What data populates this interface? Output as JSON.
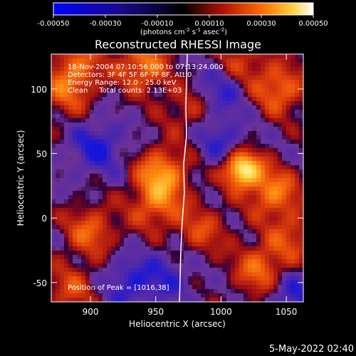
{
  "chart_data": {
    "type": "heatmap",
    "title": "Reconstructed RHESSI Image",
    "xlabel": "Heliocentric X (arcsec)",
    "ylabel": "Heliocentric Y (arcsec)",
    "xlim": [
      870,
      1063
    ],
    "ylim": [
      -65,
      127
    ],
    "x_ticks": [
      900,
      950,
      1000,
      1050
    ],
    "y_ticks": [
      -50,
      0,
      50,
      100
    ],
    "colorbar": {
      "range": [
        -0.0005,
        0.0005
      ],
      "ticks": [
        "-0.00050",
        "-0.00030",
        "-0.00010",
        "0.00010",
        "0.00030",
        "0.00050"
      ],
      "label_main": "(photons cm",
      "label_exp1": "-2",
      "label_mid": " s",
      "label_exp2": "-1",
      "label_end": " asec",
      "label_exp3": "-2",
      "label_close": ")"
    },
    "annotations": [
      "18-Nov-2004 07:10:56.000 to 07:13:24.000",
      "Detectors: 3F 4F 5F 6F 7F 8F, Att 0",
      "Energy Range: 12.0 - 25.0 keV",
      "Clean     Total counts: 2.13E+03"
    ],
    "peak_label": "Position of Peak = [1016,38]",
    "peak": [
      1016,
      38
    ],
    "hot_spots": [
      {
        "x": 890,
        "y": 118,
        "v": 0.45
      },
      {
        "x": 940,
        "y": 118,
        "v": 0.55
      },
      {
        "x": 1015,
        "y": 120,
        "v": 0.35
      },
      {
        "x": 1045,
        "y": 100,
        "v": 0.5
      },
      {
        "x": 1016,
        "y": 38,
        "v": 1.0
      },
      {
        "x": 1040,
        "y": 20,
        "v": 0.55
      },
      {
        "x": 955,
        "y": 35,
        "v": 0.6
      },
      {
        "x": 950,
        "y": 10,
        "v": 0.45
      },
      {
        "x": 900,
        "y": -10,
        "v": 0.45
      },
      {
        "x": 985,
        "y": -10,
        "v": 0.35
      },
      {
        "x": 1030,
        "y": -40,
        "v": 0.5
      },
      {
        "x": 885,
        "y": -55,
        "v": 0.35
      },
      {
        "x": 880,
        "y": 95,
        "v": 0.35
      },
      {
        "x": 975,
        "y": 85,
        "v": 0.3
      },
      {
        "x": 1055,
        "y": -15,
        "v": 0.35
      }
    ],
    "cold_spots": [
      {
        "x": 905,
        "y": 55,
        "v": -0.4
      },
      {
        "x": 1000,
        "y": 100,
        "v": -0.35
      },
      {
        "x": 1000,
        "y": 60,
        "v": -0.3
      },
      {
        "x": 930,
        "y": -50,
        "v": -0.35
      },
      {
        "x": 1055,
        "y": -60,
        "v": -0.35
      },
      {
        "x": 960,
        "y": -45,
        "v": -0.25
      }
    ]
  },
  "timestamp": "5-May-2022 02:40"
}
